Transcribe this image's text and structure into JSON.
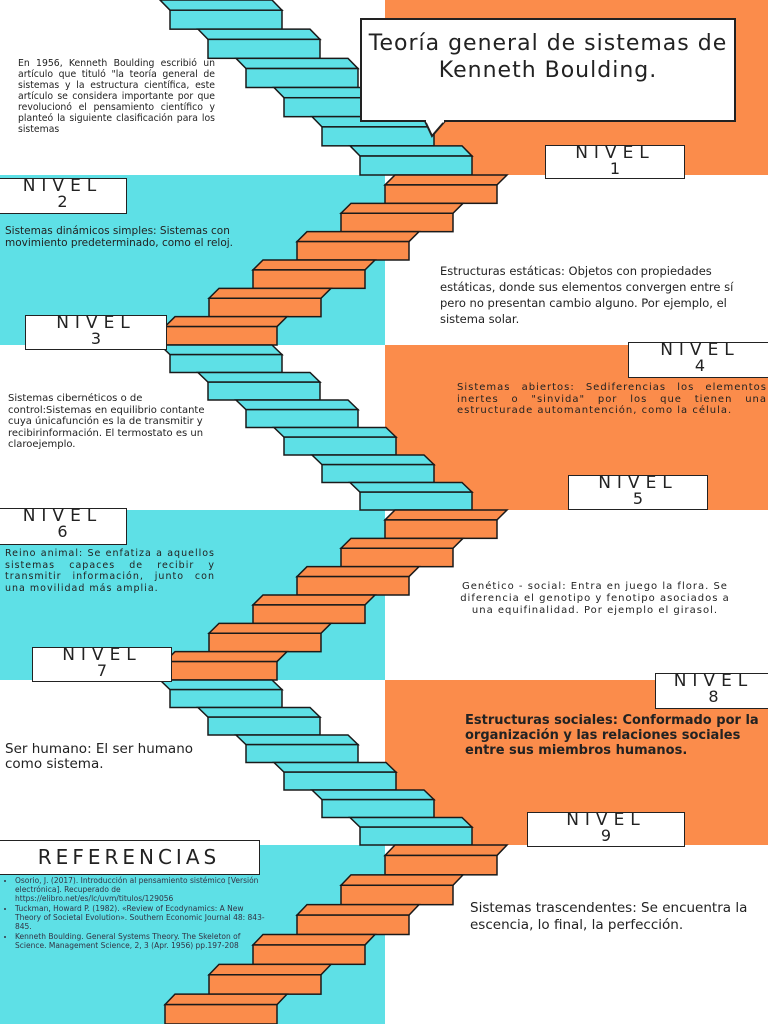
{
  "title": "Teoría general de sistemas de Kenneth Boulding.",
  "intro": "En 1956, Kenneth Boulding escribió un artículo que tituló \"la teoría general de sistemas y la estructura científica, este artículo se considera importante por que revolucionó el pensamiento científico y planteó la siguiente clasificación para los sistemas",
  "levels": [
    {
      "label": "NIVEL",
      "number": "1",
      "text": "Estructuras estáticas: Objetos con propiedades estáticas, donde sus elementos convergen entre sí pero no presentan cambio alguno. Por ejemplo, el sistema solar."
    },
    {
      "label": "NIVEL",
      "number": "2",
      "text": "Sistemas dinámicos simples: Sistemas con movimiento predeterminado, como el reloj."
    },
    {
      "label": "NIVEL",
      "number": "3",
      "text": "Sistemas cibernéticos o de control:Sistemas en equilibrio contante cuya únicafunción es la de transmitir y recibirinformación. El termostato es un claroejemplo."
    },
    {
      "label": "NIVEL",
      "number": "4",
      "text": "Sistemas abiertos: Sediferencias los elementos inertes o \"sinvida\" por los que tienen una estructurade automantención, como la célula."
    },
    {
      "label": "NIVEL",
      "number": "5",
      "text": "Genético - social: Entra en juego la flora. Se diferencia el genotipo y fenotipo asociados a una equifinalidad. Por ejemplo el girasol."
    },
    {
      "label": "NIVEL",
      "number": "6",
      "text": "Reino animal: Se enfatiza a aquellos sistemas capaces de recibir y transmitir información, junto con una movilidad más amplia."
    },
    {
      "label": "NIVEL",
      "number": "7",
      "text": "Ser humano: El ser humano como sistema."
    },
    {
      "label": "NIVEL",
      "number": "8",
      "text": "Estructuras sociales: Conformado por la organización y las relaciones sociales entre sus miembros humanos."
    },
    {
      "label": "NIVEL",
      "number": "9",
      "text": "Sistemas trascendentes: Se encuentra la escencia, lo final, la perfección."
    }
  ],
  "references": {
    "heading": "REFERENCIAS",
    "items": [
      "Osorio, J. (2017). Introducción al pensamiento sistémico [Versión electrónica]. Recuperado de https://elibro.net/es/lc/uvm/titulos/129056",
      "Tuckman, Howard P. (1982). «Review of Ecodynamics: A New Theory of Societal Evolution». Southern Economic Journal 48: 843-845.",
      "Kenneth Boulding. General Systems Theory. The Skeleton of Science. Management Science, 2, 3 (Apr. 1956) pp.197-208"
    ]
  }
}
